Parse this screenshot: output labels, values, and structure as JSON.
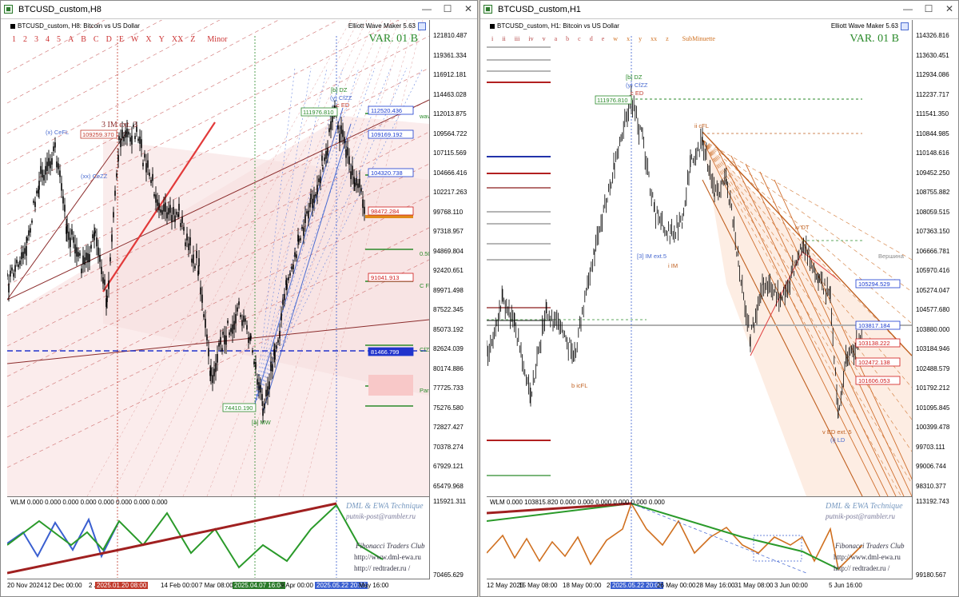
{
  "windows": {
    "left": {
      "title": "BTCUSD_custom,H8",
      "symbol_desc": "BTCUSD_custom, H8: Bitcoin vs US Dollar",
      "ewm": "Elliott Wave Maker 5.63",
      "var_label": "VAR. 01 B",
      "degrees": [
        "1",
        "2",
        "3",
        "4",
        "5",
        "A",
        "B",
        "C",
        "D",
        "E",
        "W",
        "X",
        "Y",
        "XX",
        "Z",
        "Minor"
      ],
      "indicator_label": "WLM 0.000 0.000 0.000 0.000 0.000 0.000 0.000 0.000",
      "watermark": {
        "line1": "DML & EWA Technique",
        "line2": "putnik-post@rambler.ru",
        "line3": "Fibonacci  Traders  Club",
        "line4": "http://www.dml-ewa.ru",
        "line5": "http:// redtrader.ru /"
      },
      "price_labels": [
        "121810.487",
        "119361.334",
        "116912.181",
        "114463.028",
        "112013.875",
        "109564.722",
        "107115.569",
        "104666.416",
        "102217.263",
        "99768.110",
        "97318.957",
        "94869.804",
        "92420.651",
        "89971.498",
        "87522.345",
        "85073.192",
        "82624.039",
        "80174.886",
        "77725.733",
        "75276.580",
        "72827.427",
        "70378.274",
        "67929.121",
        "65479.968",
        "115921.311",
        "70465.629"
      ],
      "boxed_prices": [
        {
          "text": "112520.436",
          "color": "#1a3bd0"
        },
        {
          "text": "109169.192",
          "color": "#1a3bd0"
        },
        {
          "text": "104320.738",
          "color": "#1a3bd0"
        },
        {
          "text": "98472.284",
          "color": "#d01a1a"
        },
        {
          "text": "91041.913",
          "color": "#d01a1a"
        },
        {
          "text": "81466.799",
          "color": "#1a3bd0"
        }
      ],
      "inline_marks": [
        "109259.370",
        "111976.810",
        "74410.190",
        "3 IM ext. 3",
        "[a] MW",
        "(x) CeFL",
        "(xx) CeZZ",
        "[b] DZ",
        "(y) CfZZ",
        "c ED",
        "wave",
        "0.500",
        "C FAI",
        "CfZZ",
        "Parit"
      ],
      "time_labels": [
        "20 Nov 2024",
        "12 Dec 00:00",
        "2 Ja",
        "2025.01.20 08:00",
        "14 Feb 00:00",
        "7 Mar 08:00",
        "2025.04.07 16:00",
        "9 Apr 00:00",
        "2025.05.22 20:00",
        "May 16:00"
      ]
    },
    "right": {
      "title": "BTCUSD_custom,H1",
      "symbol_desc": "BTCUSD_custom, H1: Bitcoin vs US Dollar",
      "ewm": "Elliott Wave Maker 5.63",
      "var_label": "VAR. 01 B",
      "degrees": [
        "i",
        "ii",
        "iii",
        "iv",
        "v",
        "a",
        "b",
        "c",
        "d",
        "e",
        "w",
        "x",
        "y",
        "xx",
        "z",
        "SubMinuette"
      ],
      "indicator_label": "WLM 0.000 103815.820 0.000 0.000 0.000 0.000 0.000 0.000",
      "watermark": {
        "line1": "DML & EWA Technique",
        "line2": "putnik-post@rambler.ru",
        "line3": "Fibonacci  Traders  Club",
        "line4": "http://www.dml-ewa.ru",
        "line5": "http:// redtrader.ru /"
      },
      "price_labels": [
        "114326.816",
        "113630.451",
        "112934.086",
        "112237.717",
        "111541.350",
        "110844.985",
        "110148.616",
        "109452.250",
        "108755.882",
        "108059.515",
        "107363.150",
        "106666.781",
        "105970.416",
        "105274.047",
        "104577.680",
        "103880.000",
        "103184.946",
        "102488.579",
        "101792.212",
        "101095.845",
        "100399.478",
        "99703.111",
        "99006.744",
        "98310.377",
        "113192.743",
        "99180.567"
      ],
      "boxed_prices": [
        {
          "text": "105294.529",
          "color": "#1a3bd0"
        },
        {
          "text": "103817.184",
          "color": "#1a3bd0"
        },
        {
          "text": "103138.222",
          "color": "#d01a1a"
        },
        {
          "text": "102472.138",
          "color": "#d01a1a"
        },
        {
          "text": "101606.053",
          "color": "#d01a1a"
        }
      ],
      "inline_marks": [
        "111976.810",
        "[b] DZ",
        "(y) CfZZ",
        "c ED",
        "ii cFL",
        "iv DT",
        "b icFL",
        "v ED ext. 5",
        "(i) LD",
        "i IM",
        "[3] IM ext.5",
        "Вершина"
      ],
      "time_labels": [
        "12 May 2025",
        "15 May 08:00",
        "18 May 00:00",
        "20",
        "2025.05.22 20:00",
        "26 May 00:00",
        "28 May 16:00",
        "31 May 08:00",
        "3 Jun 00:00",
        "5 Jun 16:00"
      ]
    }
  },
  "colors": {
    "up": "#000000",
    "fib_red": "#c0392b",
    "fib_blue": "#3a5fd0",
    "green": "#2a8a2a",
    "orange": "#d86a20",
    "pink_fill": "#f8e2e2"
  }
}
